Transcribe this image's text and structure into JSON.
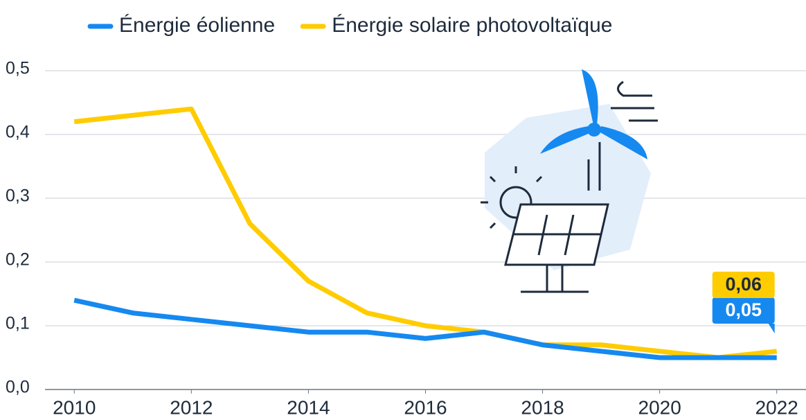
{
  "chart_data": {
    "type": "line",
    "x": [
      2010,
      2011,
      2012,
      2013,
      2014,
      2015,
      2016,
      2017,
      2018,
      2019,
      2020,
      2021,
      2022
    ],
    "series": [
      {
        "name": "Énergie éolienne",
        "color": "#1589f0",
        "values": [
          0.14,
          0.12,
          0.11,
          0.1,
          0.09,
          0.09,
          0.08,
          0.09,
          0.07,
          0.06,
          0.05,
          0.05,
          0.05
        ],
        "value_labels": [
          null,
          null,
          null,
          null,
          null,
          null,
          null,
          null,
          null,
          null,
          null,
          null,
          "0,05"
        ]
      },
      {
        "name": "Énergie solaire photovoltaïque",
        "color": "#ffcc00",
        "values": [
          0.42,
          0.43,
          0.44,
          0.26,
          0.17,
          0.12,
          0.1,
          0.09,
          0.07,
          0.07,
          0.06,
          0.05,
          0.06
        ],
        "value_labels": [
          null,
          null,
          null,
          null,
          null,
          null,
          null,
          null,
          null,
          null,
          null,
          null,
          "0,06"
        ]
      }
    ],
    "xlim": [
      2009.5,
      2022.5
    ],
    "xticks": [
      2010,
      2012,
      2014,
      2016,
      2018,
      2020,
      2022
    ],
    "ylim": [
      0,
      0.5
    ],
    "yticks": [
      {
        "value": 0,
        "label": "0,0"
      },
      {
        "value": 0.1,
        "label": "0,1"
      },
      {
        "value": 0.2,
        "label": "0,2"
      },
      {
        "value": 0.3,
        "label": "0,3"
      },
      {
        "value": 0.4,
        "label": "0,4"
      },
      {
        "value": 0.5,
        "label": "0,5"
      }
    ],
    "grid": true
  }
}
